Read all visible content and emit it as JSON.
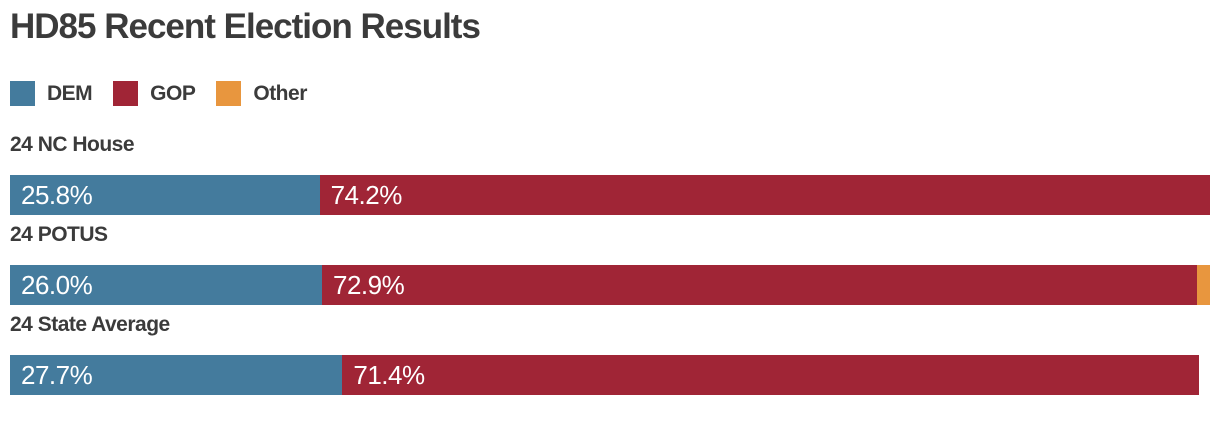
{
  "title": "HD85 Recent Election Results",
  "colors": {
    "dem": "#447b9d",
    "gop": "#a02536",
    "other": "#e8963e",
    "heading_text": "#3b3b3b",
    "bar_label_text": "#ffffff",
    "background": "#ffffff"
  },
  "legend": {
    "items": [
      {
        "key": "dem",
        "label": "DEM"
      },
      {
        "key": "gop",
        "label": "GOP"
      },
      {
        "key": "other",
        "label": "Other"
      }
    ]
  },
  "chart_data": {
    "type": "bar",
    "orientation": "horizontal",
    "stacked": true,
    "title": "HD85 Recent Election Results",
    "categories": [
      "24 NC House",
      "24 POTUS",
      "24 State Average"
    ],
    "series": [
      {
        "name": "DEM",
        "color_key": "dem",
        "values": [
          25.8,
          26.0,
          27.7
        ]
      },
      {
        "name": "GOP",
        "color_key": "gop",
        "values": [
          74.2,
          72.9,
          71.4
        ]
      },
      {
        "name": "Other",
        "color_key": "other",
        "values": [
          0,
          1.1,
          0
        ]
      }
    ],
    "value_labels": [
      [
        "25.8%",
        "74.2%",
        ""
      ],
      [
        "26.0%",
        "72.9%",
        ""
      ],
      [
        "27.7%",
        "71.4%",
        ""
      ]
    ],
    "xlim": [
      0,
      100
    ],
    "axis": "none",
    "grid": false,
    "legend_position": "top-left"
  }
}
